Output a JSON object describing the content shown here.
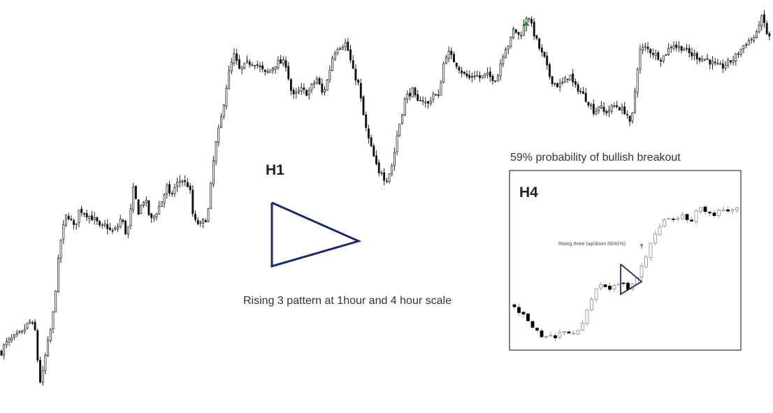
{
  "labels": {
    "h1": "H1",
    "h4": "H4",
    "caption": "Rising 3 pattern at 1hour and 4 hour scale",
    "probability": "59% probability of bullish breakout",
    "inset_note": "Rising three (up/down 59/41%)"
  },
  "colors": {
    "candle_body": "#111111",
    "wick": "#222222",
    "triangle": "#1f2a6e",
    "arrow": "#1a8a1a",
    "inset_border": "#333333",
    "inset_hollow_candle": "#888888",
    "inset_bear_candle": "#000000"
  },
  "chart_data": [
    {
      "type": "line",
      "name": "main-h1-candlestick",
      "chart_style": "candlestick",
      "title": "",
      "xlabel": "",
      "ylabel": "",
      "axes_visible": false,
      "grid": false,
      "ylim": [
        0,
        100
      ],
      "x_count": 300,
      "series": [
        {
          "values": [
            [
              0,
              12
            ],
            [
              5,
              14
            ],
            [
              12,
              15
            ],
            [
              20,
              16
            ],
            [
              30,
              17
            ],
            [
              40,
              20
            ],
            [
              48,
              18
            ],
            [
              52,
              10
            ],
            [
              56,
              4
            ],
            [
              60,
              7
            ],
            [
              64,
              12
            ],
            [
              70,
              17
            ],
            [
              76,
              24
            ],
            [
              80,
              33
            ],
            [
              86,
              42
            ],
            [
              94,
              48
            ],
            [
              100,
              46
            ],
            [
              105,
              44
            ],
            [
              112,
              49
            ],
            [
              120,
              48
            ],
            [
              128,
              47
            ],
            [
              136,
              46
            ],
            [
              142,
              44
            ],
            [
              150,
              45
            ],
            [
              158,
              43
            ],
            [
              166,
              44
            ],
            [
              172,
              47
            ],
            [
              180,
              42
            ],
            [
              186,
              49
            ],
            [
              190,
              55
            ],
            [
              196,
              48
            ],
            [
              206,
              52
            ],
            [
              214,
              46
            ],
            [
              222,
              48
            ],
            [
              230,
              51
            ],
            [
              238,
              55
            ],
            [
              242,
              52
            ],
            [
              250,
              55
            ],
            [
              258,
              57
            ],
            [
              262,
              56
            ],
            [
              270,
              55
            ],
            [
              276,
              46
            ],
            [
              286,
              45
            ],
            [
              296,
              47
            ],
            [
              306,
              64
            ],
            [
              316,
              73
            ],
            [
              326,
              84
            ],
            [
              334,
              89
            ],
            [
              342,
              85
            ],
            [
              354,
              87
            ],
            [
              364,
              87
            ],
            [
              380,
              84
            ],
            [
              396,
              87
            ],
            [
              408,
              87
            ],
            [
              418,
              78
            ],
            [
              430,
              80
            ],
            [
              440,
              79
            ],
            [
              446,
              81
            ],
            [
              454,
              83
            ],
            [
              460,
              79
            ],
            [
              466,
              81
            ],
            [
              470,
              84
            ],
            [
              476,
              89
            ],
            [
              482,
              91
            ],
            [
              494,
              92
            ],
            [
              498,
              90
            ],
            [
              506,
              84
            ],
            [
              512,
              82
            ],
            [
              522,
              71
            ],
            [
              526,
              68
            ],
            [
              534,
              63
            ],
            [
              542,
              58
            ],
            [
              546,
              59
            ],
            [
              550,
              57
            ],
            [
              554,
              57
            ],
            [
              562,
              61
            ],
            [
              568,
              68
            ],
            [
              574,
              73
            ],
            [
              580,
              78
            ],
            [
              586,
              79
            ],
            [
              592,
              80
            ],
            [
              596,
              76
            ],
            [
              602,
              78
            ],
            [
              612,
              76
            ],
            [
              620,
              79
            ],
            [
              628,
              78
            ],
            [
              634,
              86
            ],
            [
              640,
              90
            ],
            [
              648,
              88
            ],
            [
              656,
              86
            ],
            [
              664,
              84
            ],
            [
              672,
              83
            ],
            [
              680,
              84
            ],
            [
              688,
              83
            ],
            [
              696,
              84
            ],
            [
              704,
              83
            ],
            [
              712,
              83
            ],
            [
              718,
              88
            ],
            [
              724,
              91
            ],
            [
              730,
              92
            ],
            [
              736,
              96
            ],
            [
              742,
              94
            ],
            [
              748,
              95
            ],
            [
              752,
              98
            ],
            [
              756,
              100
            ],
            [
              762,
              96
            ],
            [
              768,
              93
            ],
            [
              774,
              90
            ],
            [
              780,
              88
            ],
            [
              786,
              84
            ],
            [
              792,
              82
            ],
            [
              800,
              81
            ],
            [
              808,
              82
            ],
            [
              816,
              84
            ],
            [
              822,
              81
            ],
            [
              830,
              80
            ],
            [
              838,
              78
            ],
            [
              846,
              76
            ],
            [
              852,
              74
            ],
            [
              858,
              76
            ],
            [
              866,
              74
            ],
            [
              874,
              75
            ],
            [
              882,
              76
            ],
            [
              890,
              75
            ],
            [
              898,
              74
            ],
            [
              904,
              70
            ],
            [
              910,
              80
            ],
            [
              916,
              90
            ],
            [
              924,
              91
            ],
            [
              932,
              90
            ],
            [
              940,
              89
            ],
            [
              948,
              88
            ],
            [
              956,
              90
            ],
            [
              964,
              92
            ],
            [
              970,
              91
            ],
            [
              978,
              91
            ],
            [
              984,
              90
            ],
            [
              990,
              89
            ],
            [
              996,
              89
            ],
            [
              1004,
              88
            ],
            [
              1012,
              88
            ],
            [
              1020,
              87
            ],
            [
              1028,
              86
            ],
            [
              1036,
              86
            ],
            [
              1044,
              87
            ],
            [
              1052,
              88
            ],
            [
              1060,
              90
            ],
            [
              1068,
              92
            ],
            [
              1076,
              93
            ],
            [
              1084,
              94
            ],
            [
              1090,
              99
            ],
            [
              1096,
              97
            ],
            [
              1100,
              94
            ],
            [
              1106,
              93
            ]
          ]
        }
      ],
      "annotations": [
        "H1",
        "Rising 3 pattern at 1hour and 4 hour scale",
        "breakout arrow (up)"
      ]
    },
    {
      "type": "line",
      "name": "inset-h4-candlestick",
      "chart_style": "candlestick",
      "title": "",
      "xlabel": "",
      "ylabel": "",
      "axes_visible": false,
      "grid": false,
      "ylim": [
        0,
        100
      ],
      "series": [
        {
          "values": [
            [
              0,
              25
            ],
            [
              4,
              21
            ],
            [
              8,
              18
            ],
            [
              12,
              14
            ],
            [
              16,
              10
            ],
            [
              20,
              8
            ],
            [
              24,
              6
            ],
            [
              28,
              4
            ],
            [
              32,
              5
            ],
            [
              36,
              6
            ],
            [
              40,
              8
            ],
            [
              44,
              9
            ],
            [
              48,
              8
            ],
            [
              52,
              7
            ],
            [
              56,
              11
            ],
            [
              60,
              16
            ],
            [
              64,
              24
            ],
            [
              68,
              33
            ],
            [
              72,
              37
            ],
            [
              76,
              36
            ],
            [
              80,
              35
            ],
            [
              84,
              34
            ],
            [
              88,
              37
            ],
            [
              92,
              38
            ],
            [
              96,
              36
            ],
            [
              100,
              34
            ],
            [
              104,
              40
            ],
            [
              108,
              46
            ],
            [
              112,
              53
            ],
            [
              116,
              60
            ],
            [
              120,
              67
            ],
            [
              124,
              72
            ],
            [
              128,
              76
            ],
            [
              132,
              78
            ],
            [
              136,
              79
            ],
            [
              140,
              77
            ],
            [
              144,
              80
            ],
            [
              148,
              78
            ],
            [
              152,
              76
            ],
            [
              156,
              82
            ],
            [
              160,
              85
            ],
            [
              164,
              84
            ],
            [
              168,
              81
            ],
            [
              172,
              79
            ],
            [
              176,
              83
            ],
            [
              180,
              84
            ],
            [
              184,
              82
            ],
            [
              188,
              84
            ],
            [
              192,
              86
            ]
          ]
        }
      ],
      "annotations": [
        "H4",
        "Rising three (up/down 59/41%)",
        "breakout arrow (up)"
      ]
    }
  ]
}
